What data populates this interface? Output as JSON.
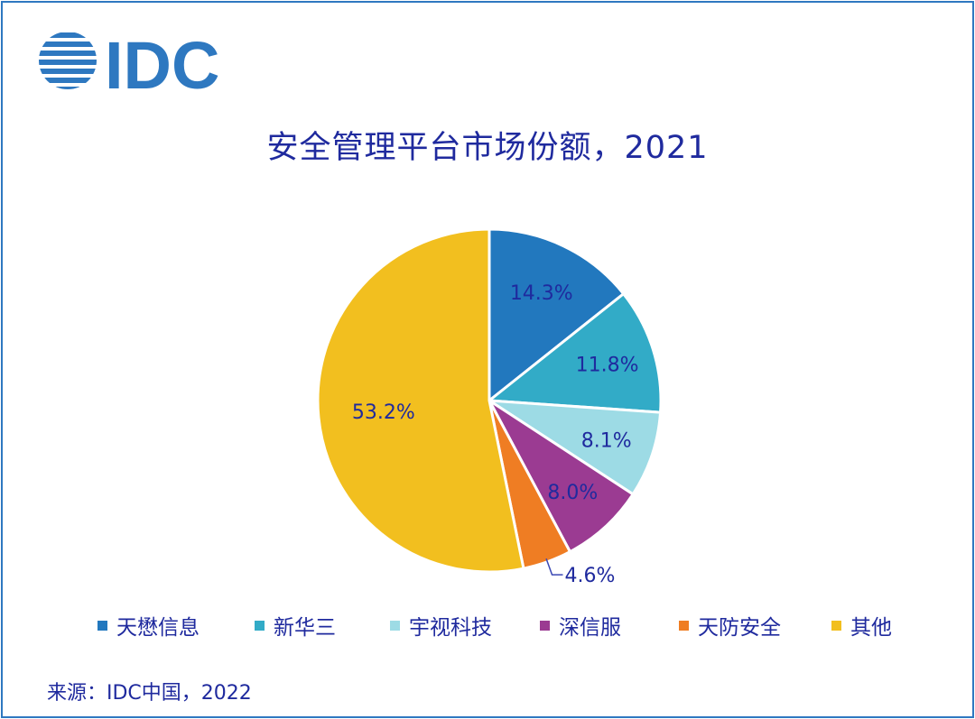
{
  "logo_text": "IDC",
  "colors": {
    "brand": "#2e78c0",
    "text": "#1f2a9e",
    "slices": [
      "#2278be",
      "#32abc7",
      "#9ddbe5",
      "#9b3b92",
      "#ef7d23",
      "#f2bf1f"
    ]
  },
  "chart_data": {
    "type": "pie",
    "title": "安全管理平台市场份额，2021",
    "categories": [
      "天懋信息",
      "新华三",
      "宇视科技",
      "深信服",
      "天防安全",
      "其他"
    ],
    "values": [
      14.3,
      11.8,
      8.1,
      8.0,
      4.6,
      53.2
    ],
    "labels": [
      "14.3%",
      "11.8%",
      "8.1%",
      "8.0%",
      "4.6%",
      "53.2%"
    ],
    "legend_position": "bottom",
    "start_angle": "12 o'clock",
    "direction": "clockwise"
  },
  "source": "来源：IDC中国，2022"
}
